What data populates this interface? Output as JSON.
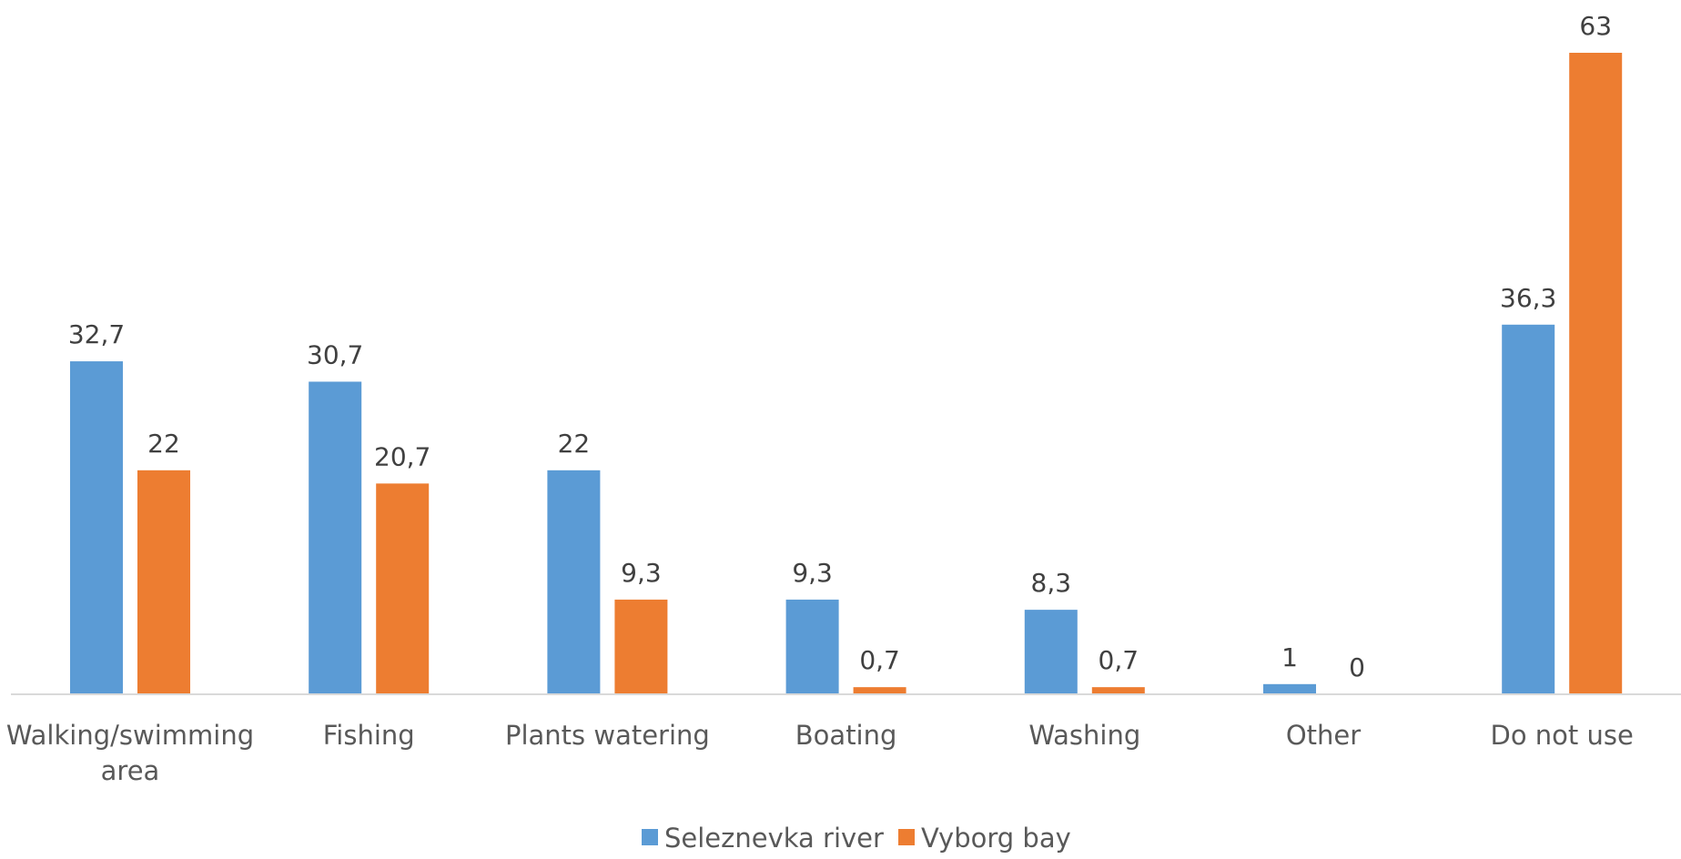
{
  "chart_data": {
    "type": "bar",
    "title": "",
    "xlabel": "",
    "ylabel": "",
    "categories": [
      [
        "Walking/swimming",
        "area"
      ],
      [
        "Fishing"
      ],
      [
        "Plants watering"
      ],
      [
        "Boating"
      ],
      [
        "Washing"
      ],
      [
        "Other"
      ],
      [
        "Do not use"
      ]
    ],
    "series": [
      {
        "name": "Seleznevka river",
        "color": "#5B9BD5",
        "values": [
          32.7,
          30.7,
          22,
          9.3,
          8.3,
          1,
          36.3
        ],
        "labels": [
          "32,7",
          "30,7",
          "22",
          "9,3",
          "8,3",
          "1",
          "36,3"
        ]
      },
      {
        "name": "Vyborg bay",
        "color": "#ED7D31",
        "values": [
          22,
          20.7,
          9.3,
          0.7,
          0.7,
          0,
          63
        ],
        "labels": [
          "22",
          "20,7",
          "9,3",
          "0,7",
          "0,7",
          "0",
          "63"
        ]
      }
    ],
    "ylim": [
      0,
      63
    ],
    "grid": false,
    "legend": "bottom"
  }
}
